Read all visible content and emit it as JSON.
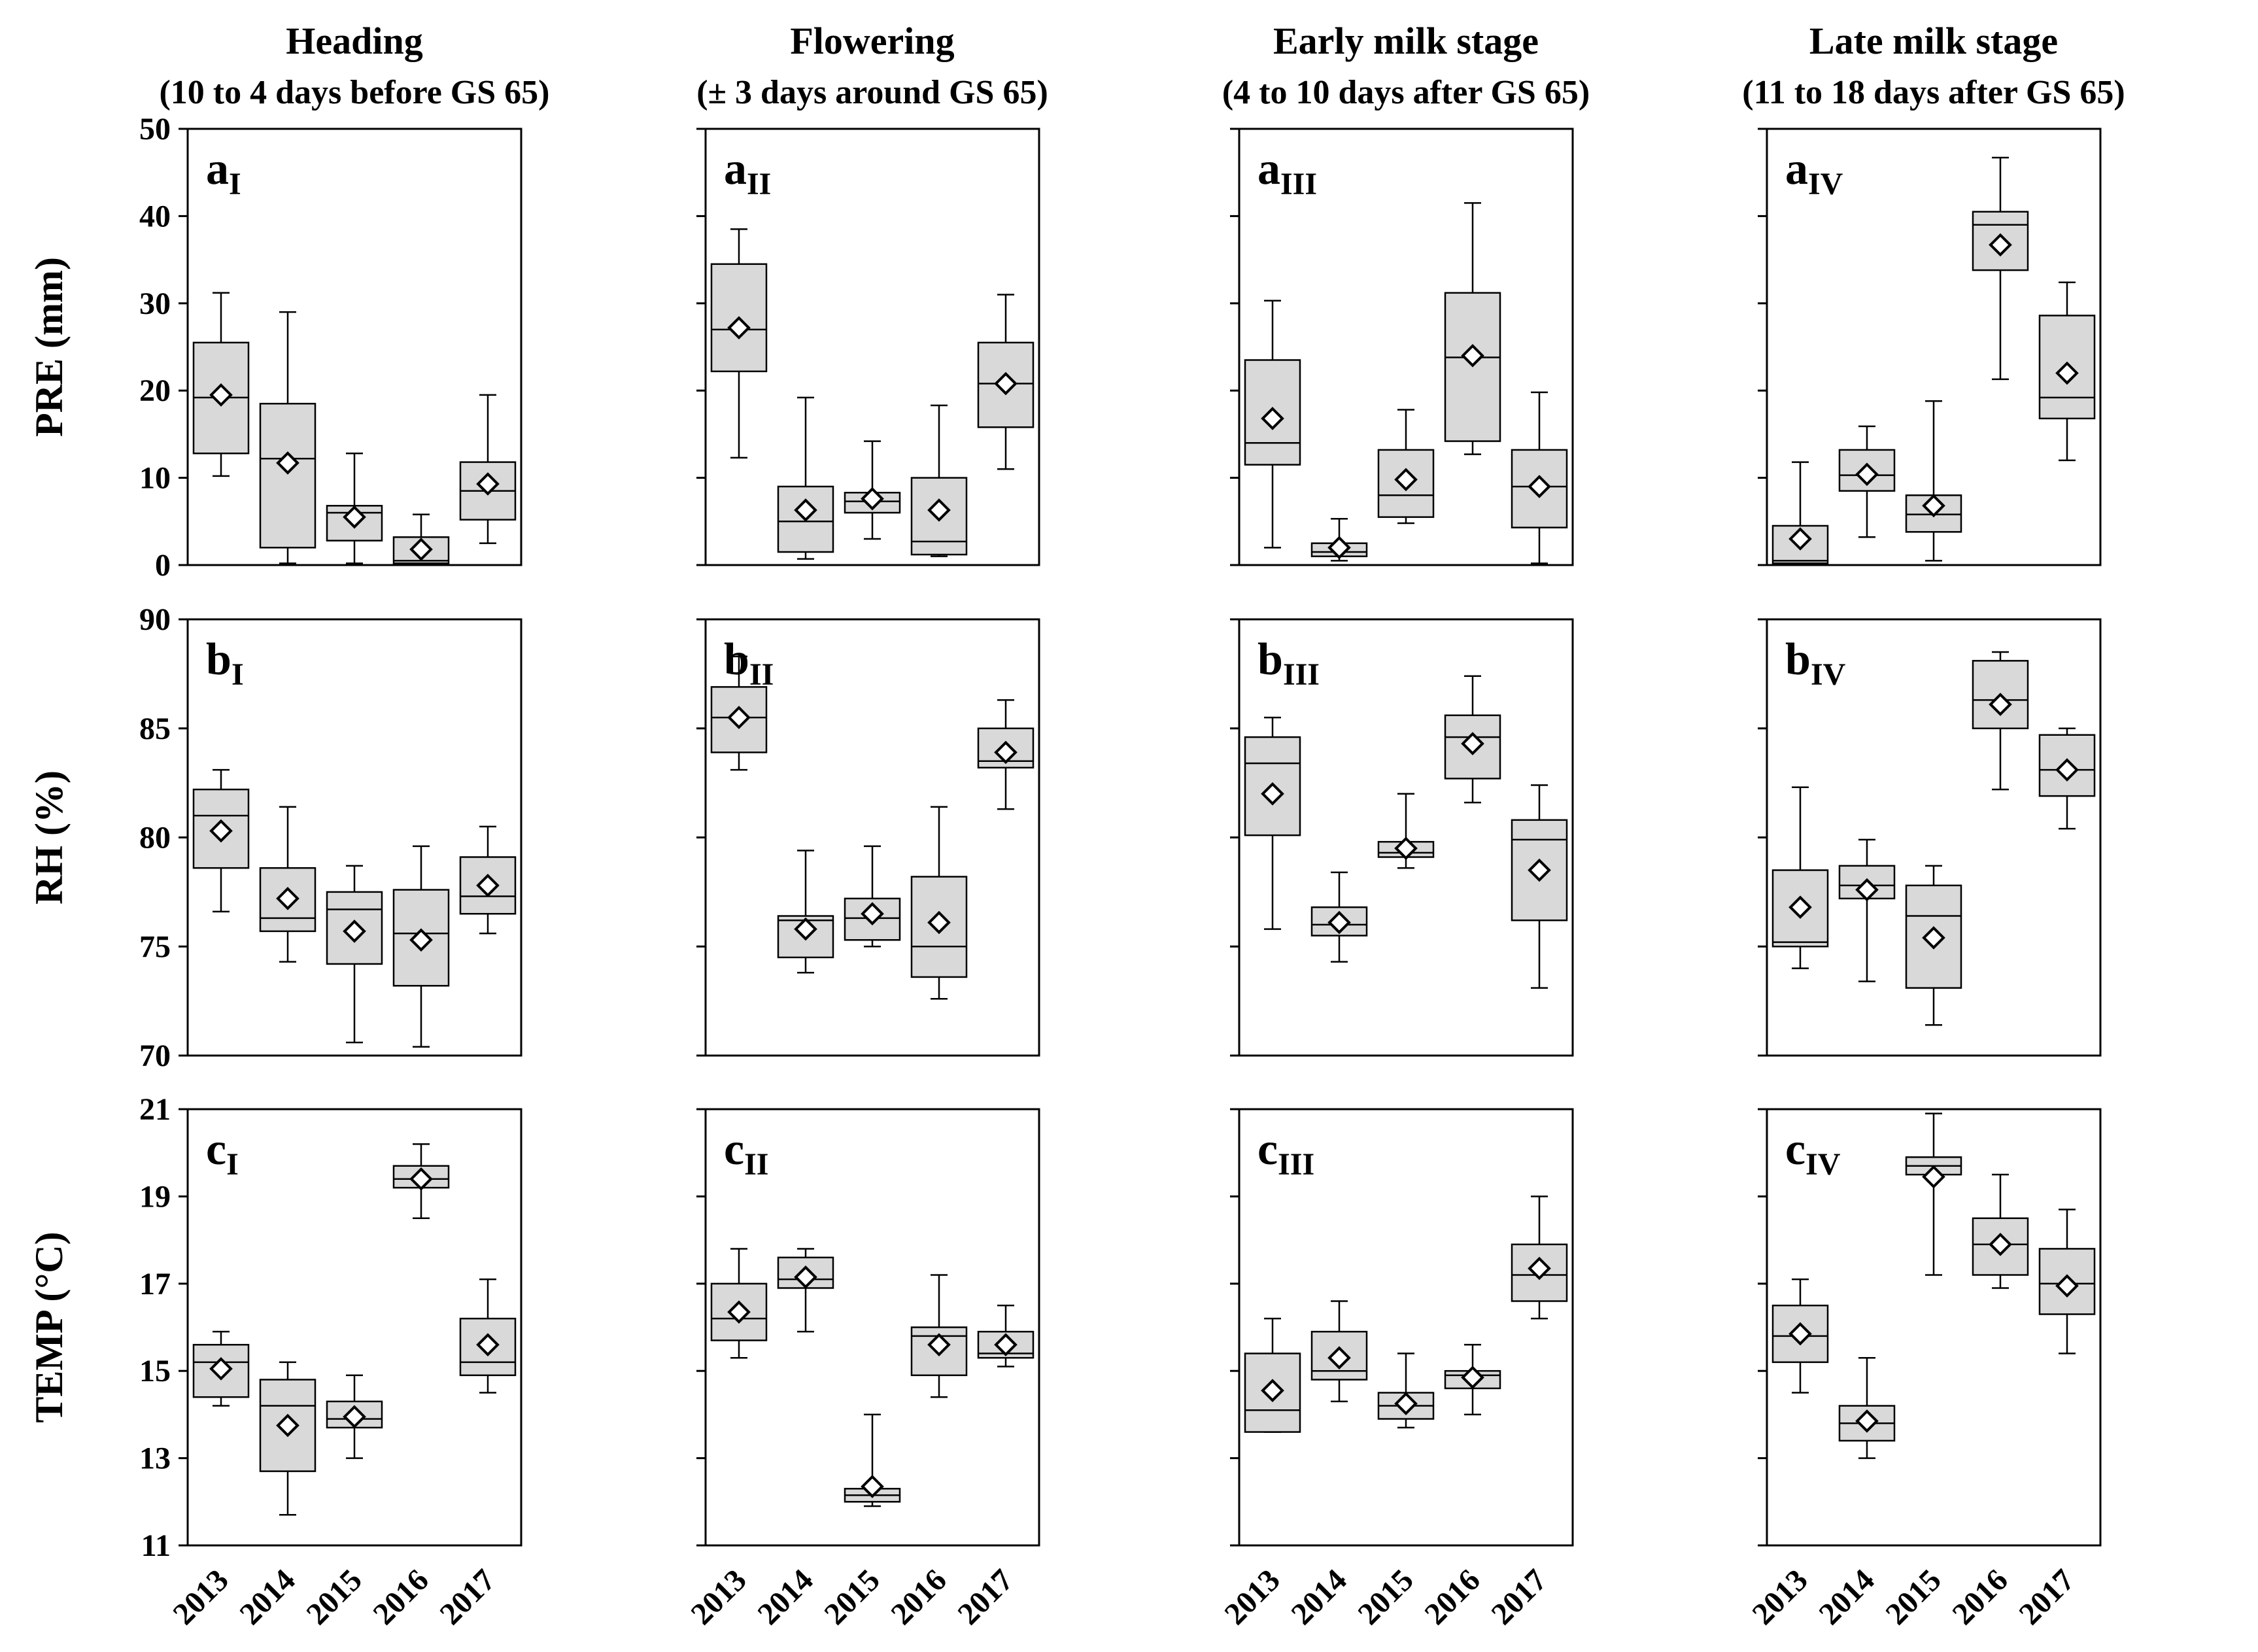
{
  "columns": [
    {
      "title": "Heading",
      "subtitle": "(10 to 4 days before GS 65)"
    },
    {
      "title": "Flowering",
      "subtitle": "(± 3 days around GS 65)"
    },
    {
      "title": "Early milk stage",
      "subtitle": "(4 to 10 days after GS 65)"
    },
    {
      "title": "Late milk stage",
      "subtitle": "(11 to 18 days after GS 65)"
    }
  ],
  "rows": [
    {
      "ylabel": "PRE (mm)",
      "letter": "a",
      "ylim": [
        0,
        50
      ],
      "ticks": [
        "0",
        "10",
        "20",
        "30",
        "40",
        "50"
      ]
    },
    {
      "ylabel": "RH (%)",
      "letter": "b",
      "ylim": [
        70,
        90
      ],
      "ticks": [
        "70",
        "75",
        "80",
        "85",
        "90"
      ]
    },
    {
      "ylabel": "TEMP (°C)",
      "letter": "c",
      "ylim": [
        11,
        21
      ],
      "ticks": [
        "11",
        "13",
        "15",
        "17",
        "19",
        "21"
      ]
    }
  ],
  "numerals": [
    "I",
    "II",
    "III",
    "IV"
  ],
  "years": [
    "2013",
    "2014",
    "2015",
    "2016",
    "2017"
  ],
  "colors": {
    "box_fill": "#d9d9d9",
    "stroke": "#000000",
    "mean_fill": "#ffffff"
  },
  "chart_data": {
    "type": "box",
    "x": [
      "2013",
      "2014",
      "2015",
      "2016",
      "2017"
    ],
    "layout": "3 rows x 4 columns of box plots; diamond marks the mean",
    "grid": false,
    "panels": [
      [
        {
          "panel": "aI",
          "boxes": [
            {
              "min": 10.2,
              "q1": 12.8,
              "median": 19.2,
              "q3": 25.5,
              "max": 31.2,
              "mean": 19.5
            },
            {
              "min": 0.2,
              "q1": 2.0,
              "median": 12.2,
              "q3": 18.5,
              "max": 29.0,
              "mean": 11.7
            },
            {
              "min": 0.2,
              "q1": 2.8,
              "median": 6.0,
              "q3": 6.8,
              "max": 12.8,
              "mean": 5.5
            },
            {
              "min": 0.0,
              "q1": 0.2,
              "median": 0.5,
              "q3": 3.2,
              "max": 5.8,
              "mean": 1.8
            },
            {
              "min": 2.5,
              "q1": 5.2,
              "median": 8.5,
              "q3": 11.8,
              "max": 19.5,
              "mean": 9.3
            }
          ]
        },
        {
          "panel": "aII",
          "boxes": [
            {
              "min": 12.3,
              "q1": 22.2,
              "median": 27.0,
              "q3": 34.5,
              "max": 38.5,
              "mean": 27.2
            },
            {
              "min": 0.7,
              "q1": 1.5,
              "median": 5.0,
              "q3": 9.0,
              "max": 19.2,
              "mean": 6.3
            },
            {
              "min": 3.0,
              "q1": 6.0,
              "median": 7.3,
              "q3": 8.3,
              "max": 14.2,
              "mean": 7.6
            },
            {
              "min": 1.0,
              "q1": 1.2,
              "median": 2.7,
              "q3": 10.0,
              "max": 18.3,
              "mean": 6.3
            },
            {
              "min": 11.0,
              "q1": 15.8,
              "median": 20.8,
              "q3": 25.5,
              "max": 31.0,
              "mean": 20.8
            }
          ]
        },
        {
          "panel": "aIII",
          "boxes": [
            {
              "min": 2.0,
              "q1": 11.5,
              "median": 14.0,
              "q3": 23.5,
              "max": 30.3,
              "mean": 16.8
            },
            {
              "min": 0.5,
              "q1": 1.0,
              "median": 1.5,
              "q3": 2.5,
              "max": 5.3,
              "mean": 2.0
            },
            {
              "min": 4.8,
              "q1": 5.5,
              "median": 8.0,
              "q3": 13.2,
              "max": 17.8,
              "mean": 9.8
            },
            {
              "min": 12.7,
              "q1": 14.2,
              "median": 23.8,
              "q3": 31.2,
              "max": 41.5,
              "mean": 24.0
            },
            {
              "min": 0.2,
              "q1": 4.3,
              "median": 9.0,
              "q3": 13.2,
              "max": 19.8,
              "mean": 9.0
            }
          ]
        },
        {
          "panel": "aIV",
          "boxes": [
            {
              "min": 0.0,
              "q1": 0.2,
              "median": 0.5,
              "q3": 4.5,
              "max": 11.8,
              "mean": 3.0
            },
            {
              "min": 3.2,
              "q1": 8.5,
              "median": 10.3,
              "q3": 13.2,
              "max": 15.9,
              "mean": 10.4
            },
            {
              "min": 0.5,
              "q1": 3.8,
              "median": 5.8,
              "q3": 8.0,
              "max": 18.8,
              "mean": 6.8
            },
            {
              "min": 21.3,
              "q1": 33.8,
              "median": 39.0,
              "q3": 40.5,
              "max": 46.7,
              "mean": 36.7
            },
            {
              "min": 12.0,
              "q1": 16.8,
              "median": 19.2,
              "q3": 28.6,
              "max": 32.4,
              "mean": 22.0
            }
          ]
        }
      ],
      [
        {
          "panel": "bI",
          "boxes": [
            {
              "min": 76.6,
              "q1": 78.6,
              "median": 81.0,
              "q3": 82.2,
              "max": 83.1,
              "mean": 80.3
            },
            {
              "min": 74.3,
              "q1": 75.7,
              "median": 76.3,
              "q3": 78.6,
              "max": 81.4,
              "mean": 77.2
            },
            {
              "min": 70.6,
              "q1": 74.2,
              "median": 76.7,
              "q3": 77.5,
              "max": 78.7,
              "mean": 75.7
            },
            {
              "min": 70.4,
              "q1": 73.2,
              "median": 75.6,
              "q3": 77.6,
              "max": 79.6,
              "mean": 75.3
            },
            {
              "min": 75.6,
              "q1": 76.5,
              "median": 77.3,
              "q3": 79.1,
              "max": 80.5,
              "mean": 77.8
            }
          ]
        },
        {
          "panel": "bII",
          "boxes": [
            {
              "min": 83.1,
              "q1": 83.9,
              "median": 85.5,
              "q3": 86.9,
              "max": 88.3,
              "mean": 85.5
            },
            {
              "min": 73.8,
              "q1": 74.5,
              "median": 76.2,
              "q3": 76.4,
              "max": 79.4,
              "mean": 75.8
            },
            {
              "min": 75.0,
              "q1": 75.3,
              "median": 76.3,
              "q3": 77.2,
              "max": 79.6,
              "mean": 76.5
            },
            {
              "min": 72.6,
              "q1": 73.6,
              "median": 75.0,
              "q3": 78.2,
              "max": 81.4,
              "mean": 76.1
            },
            {
              "min": 81.3,
              "q1": 83.2,
              "median": 83.5,
              "q3": 85.0,
              "max": 86.3,
              "mean": 83.9
            }
          ]
        },
        {
          "panel": "bIII",
          "boxes": [
            {
              "min": 75.8,
              "q1": 80.1,
              "median": 83.4,
              "q3": 84.6,
              "max": 85.5,
              "mean": 82.0
            },
            {
              "min": 74.3,
              "q1": 75.5,
              "median": 76.0,
              "q3": 76.8,
              "max": 78.4,
              "mean": 76.1
            },
            {
              "min": 78.6,
              "q1": 79.1,
              "median": 79.3,
              "q3": 79.8,
              "max": 82.0,
              "mean": 79.5
            },
            {
              "min": 81.6,
              "q1": 82.7,
              "median": 84.6,
              "q3": 85.6,
              "max": 87.4,
              "mean": 84.3
            },
            {
              "min": 73.1,
              "q1": 76.2,
              "median": 79.9,
              "q3": 80.8,
              "max": 82.4,
              "mean": 78.5
            }
          ]
        },
        {
          "panel": "bIV",
          "boxes": [
            {
              "min": 74.0,
              "q1": 75.0,
              "median": 75.2,
              "q3": 78.5,
              "max": 82.3,
              "mean": 76.8
            },
            {
              "min": 73.4,
              "q1": 77.2,
              "median": 77.8,
              "q3": 78.7,
              "max": 79.9,
              "mean": 77.6
            },
            {
              "min": 71.4,
              "q1": 73.1,
              "median": 76.4,
              "q3": 77.8,
              "max": 78.7,
              "mean": 75.4
            },
            {
              "min": 82.2,
              "q1": 85.0,
              "median": 86.3,
              "q3": 88.1,
              "max": 88.5,
              "mean": 86.1
            },
            {
              "min": 80.4,
              "q1": 81.9,
              "median": 83.1,
              "q3": 84.7,
              "max": 85.0,
              "mean": 83.1
            }
          ]
        }
      ],
      [
        {
          "panel": "cI",
          "boxes": [
            {
              "min": 14.2,
              "q1": 14.4,
              "median": 15.2,
              "q3": 15.6,
              "max": 15.9,
              "mean": 15.05
            },
            {
              "min": 11.7,
              "q1": 12.7,
              "median": 14.2,
              "q3": 14.8,
              "max": 15.2,
              "mean": 13.75
            },
            {
              "min": 13.0,
              "q1": 13.7,
              "median": 13.9,
              "q3": 14.3,
              "max": 14.9,
              "mean": 13.95
            },
            {
              "min": 18.5,
              "q1": 19.2,
              "median": 19.4,
              "q3": 19.7,
              "max": 20.2,
              "mean": 19.4
            },
            {
              "min": 14.5,
              "q1": 14.9,
              "median": 15.2,
              "q3": 16.2,
              "max": 17.1,
              "mean": 15.6
            }
          ]
        },
        {
          "panel": "cII",
          "boxes": [
            {
              "min": 15.3,
              "q1": 15.7,
              "median": 16.2,
              "q3": 17.0,
              "max": 17.8,
              "mean": 16.35
            },
            {
              "min": 15.9,
              "q1": 16.9,
              "median": 17.1,
              "q3": 17.6,
              "max": 17.8,
              "mean": 17.15
            },
            {
              "min": 11.9,
              "q1": 12.0,
              "median": 12.15,
              "q3": 12.3,
              "max": 14.0,
              "mean": 12.35
            },
            {
              "min": 14.4,
              "q1": 14.9,
              "median": 15.8,
              "q3": 16.0,
              "max": 17.2,
              "mean": 15.6
            },
            {
              "min": 15.1,
              "q1": 15.3,
              "median": 15.4,
              "q3": 15.9,
              "max": 16.5,
              "mean": 15.6
            }
          ]
        },
        {
          "panel": "cIII",
          "boxes": [
            {
              "min": 13.6,
              "q1": 13.6,
              "median": 14.1,
              "q3": 15.4,
              "max": 16.2,
              "mean": 14.55
            },
            {
              "min": 14.3,
              "q1": 14.8,
              "median": 15.0,
              "q3": 15.9,
              "max": 16.6,
              "mean": 15.3
            },
            {
              "min": 13.7,
              "q1": 13.9,
              "median": 14.2,
              "q3": 14.5,
              "max": 15.4,
              "mean": 14.25
            },
            {
              "min": 14.0,
              "q1": 14.6,
              "median": 14.9,
              "q3": 15.0,
              "max": 15.6,
              "mean": 14.85
            },
            {
              "min": 16.2,
              "q1": 16.6,
              "median": 17.2,
              "q3": 17.9,
              "max": 19.0,
              "mean": 17.35
            }
          ]
        },
        {
          "panel": "cIV",
          "boxes": [
            {
              "min": 14.5,
              "q1": 15.2,
              "median": 15.8,
              "q3": 16.5,
              "max": 17.1,
              "mean": 15.85
            },
            {
              "min": 13.0,
              "q1": 13.4,
              "median": 13.8,
              "q3": 14.2,
              "max": 15.3,
              "mean": 13.85
            },
            {
              "min": 17.2,
              "q1": 19.5,
              "median": 19.7,
              "q3": 19.9,
              "max": 20.9,
              "mean": 19.45
            },
            {
              "min": 16.9,
              "q1": 17.2,
              "median": 17.9,
              "q3": 18.5,
              "max": 19.5,
              "mean": 17.9
            },
            {
              "min": 15.4,
              "q1": 16.3,
              "median": 17.0,
              "q3": 17.8,
              "max": 18.7,
              "mean": 16.95
            }
          ]
        }
      ]
    ]
  }
}
